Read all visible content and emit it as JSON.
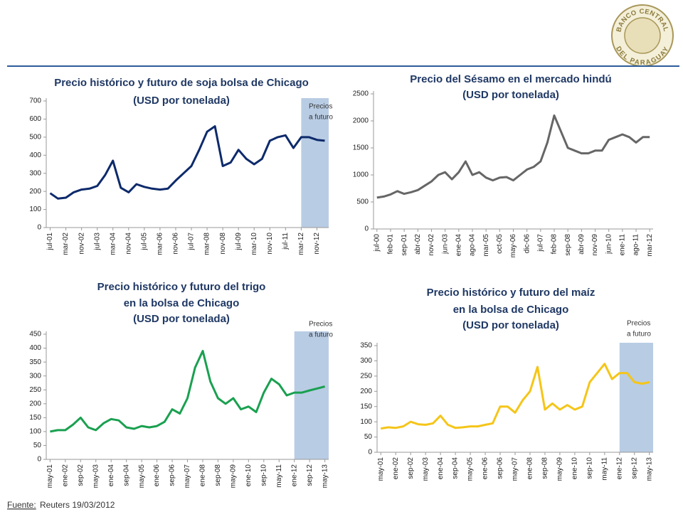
{
  "logo": {
    "top": "BANCO CENTRAL",
    "bottom": "DEL PARAGUAY"
  },
  "footer": {
    "label": "Fuente:",
    "text": "Reuters 19/03/2012"
  },
  "chart_data": [
    {
      "type": "line",
      "title": [
        "Precio histórico y futuro de soja bolsa de Chicago",
        "(USD por tonelada)"
      ],
      "annotation": [
        "Precios",
        "a futuro"
      ],
      "forecast_start": "mar-12",
      "color": "#0d2a6b",
      "categories": [
        "jul-01",
        null,
        "mar-02",
        null,
        "nov-02",
        null,
        "jul-03",
        null,
        "mar-04",
        null,
        "nov-04",
        null,
        "jul-05",
        null,
        "mar-06",
        null,
        "nov-06",
        null,
        "jul-07",
        null,
        "mar-08",
        null,
        "nov-08",
        null,
        "jul-09",
        null,
        "mar-10",
        null,
        "nov-10",
        null,
        "jul-11",
        null,
        "mar-12",
        null,
        "nov-12",
        null
      ],
      "values": [
        190,
        160,
        165,
        195,
        210,
        215,
        230,
        290,
        370,
        220,
        195,
        240,
        225,
        215,
        210,
        215,
        260,
        300,
        340,
        430,
        530,
        560,
        340,
        360,
        430,
        380,
        350,
        380,
        480,
        500,
        510,
        440,
        500,
        500,
        485,
        480
      ],
      "ylim": [
        0,
        700
      ],
      "yticks": [
        0,
        100,
        200,
        300,
        400,
        500,
        600,
        700
      ]
    },
    {
      "type": "line",
      "title": [
        "Precio del Sésamo en el mercado hindú",
        "(USD por tonelada)"
      ],
      "color": "#666666",
      "categories": [
        "jul-00",
        null,
        "feb-01",
        null,
        "sep-01",
        null,
        "abr-02",
        null,
        "nov-02",
        null,
        "jun-03",
        null,
        "ene-04",
        null,
        "ago-04",
        null,
        "mar-05",
        null,
        "oct-05",
        null,
        "may-06",
        null,
        "dic-06",
        null,
        "jul-07",
        null,
        "feb-08",
        null,
        "sep-08",
        null,
        "abr-09",
        null,
        "nov-09",
        null,
        "jun-10",
        null,
        "ene-11",
        null,
        "ago-11",
        null,
        "mar-12"
      ],
      "values": [
        580,
        600,
        640,
        700,
        650,
        680,
        720,
        800,
        880,
        1000,
        1050,
        920,
        1050,
        1250,
        1000,
        1050,
        950,
        900,
        950,
        960,
        900,
        1000,
        1100,
        1150,
        1250,
        1600,
        2100,
        1800,
        1500,
        1450,
        1400,
        1400,
        1450,
        1450,
        1650,
        1700,
        1750,
        1700,
        1600,
        1700,
        1700
      ],
      "ylim": [
        0,
        2500
      ],
      "yticks": [
        0,
        500,
        1000,
        1500,
        2000,
        2500
      ]
    },
    {
      "type": "line",
      "title": [
        "Precio histórico y futuro del  trigo",
        "en la bolsa de Chicago",
        "(USD por tonelada)"
      ],
      "annotation": [
        "Precios",
        "a futuro"
      ],
      "forecast_start": "ene-12",
      "color": "#1aa050",
      "categories": [
        "may-01",
        null,
        "ene-02",
        null,
        "sep-02",
        null,
        "may-03",
        null,
        "ene-04",
        null,
        "sep-04",
        null,
        "may-05",
        null,
        "ene-06",
        null,
        "sep-06",
        null,
        "may-07",
        null,
        "ene-08",
        null,
        "sep-08",
        null,
        "may-09",
        null,
        "ene-10",
        null,
        "sep-10",
        null,
        "may-11",
        null,
        "ene-12",
        null,
        "sep-12",
        null,
        "may-13"
      ],
      "values": [
        100,
        105,
        105,
        125,
        150,
        115,
        105,
        130,
        145,
        140,
        115,
        110,
        120,
        115,
        120,
        135,
        180,
        165,
        220,
        330,
        390,
        280,
        220,
        200,
        220,
        180,
        190,
        170,
        240,
        290,
        270,
        230,
        240,
        240,
        248,
        255,
        262
      ],
      "ylim": [
        0,
        450
      ],
      "yticks": [
        0,
        50,
        100,
        150,
        200,
        250,
        300,
        350,
        400,
        450
      ]
    },
    {
      "type": "line",
      "title": [
        "Precio histórico y futuro del maíz",
        "en la bolsa de Chicago",
        "(USD por tonelada)"
      ],
      "annotation": [
        "Precios",
        "a futuro"
      ],
      "forecast_start": "ene-12",
      "color": "#f5c518",
      "categories": [
        "may-01",
        null,
        "ene-02",
        null,
        "sep-02",
        null,
        "may-03",
        null,
        "ene-04",
        null,
        "sep-04",
        null,
        "may-05",
        null,
        "ene-06",
        null,
        "sep-06",
        null,
        "may-07",
        null,
        "ene-08",
        null,
        "sep-08",
        null,
        "may-09",
        null,
        "ene-10",
        null,
        "sep-10",
        null,
        "may-11",
        null,
        "ene-12",
        null,
        "sep-12",
        null,
        "may-13"
      ],
      "values": [
        78,
        82,
        80,
        85,
        100,
        92,
        90,
        95,
        120,
        90,
        80,
        82,
        85,
        85,
        90,
        95,
        150,
        150,
        130,
        170,
        200,
        280,
        140,
        160,
        140,
        155,
        140,
        150,
        230,
        260,
        290,
        240,
        260,
        260,
        230,
        225,
        230
      ],
      "ylim": [
        0,
        350
      ],
      "yticks": [
        0,
        50,
        100,
        150,
        200,
        250,
        300,
        350
      ]
    }
  ]
}
